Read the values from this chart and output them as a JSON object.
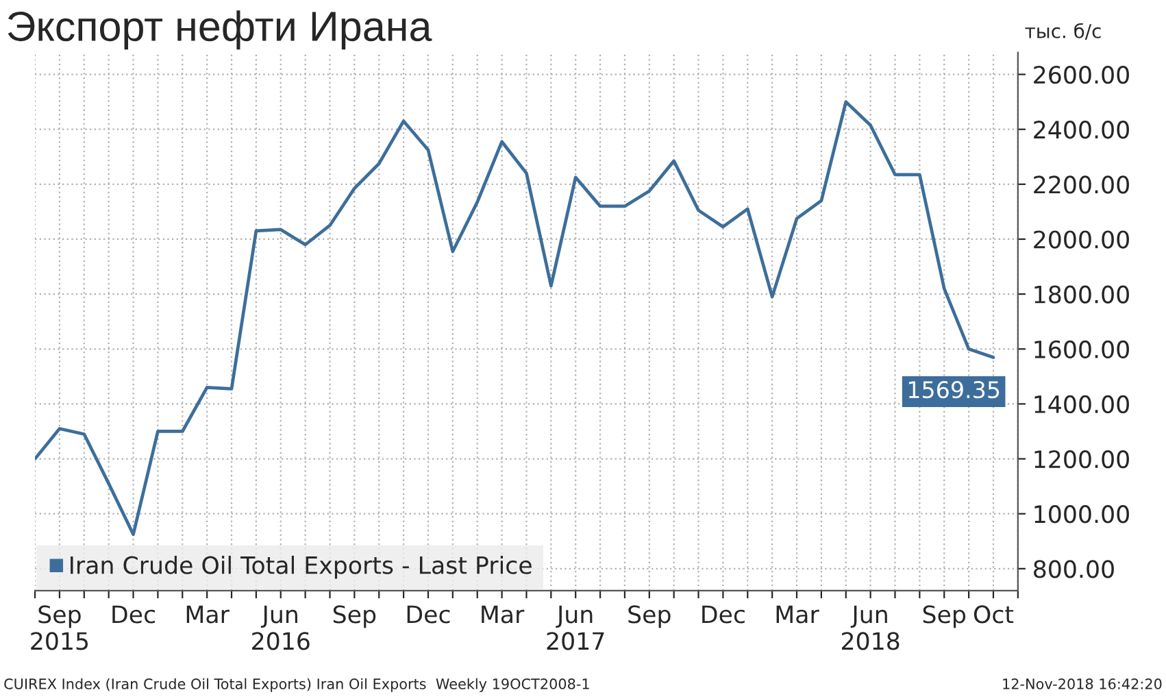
{
  "chart_data": {
    "type": "line",
    "title": "Экспорт нефти Ирана",
    "ylabel": "тыс. б/с",
    "categories": [
      null,
      "Sep\n2015",
      null,
      null,
      "Dec",
      null,
      null,
      "Mar",
      null,
      null,
      "Jun\n2016",
      null,
      null,
      "Sep",
      null,
      null,
      "Dec",
      null,
      null,
      "Mar",
      null,
      null,
      "Jun\n2017",
      null,
      null,
      "Sep",
      null,
      null,
      "Dec",
      null,
      null,
      "Mar",
      null,
      null,
      "Jun\n2018",
      null,
      null,
      "Sep",
      null,
      "Oct"
    ],
    "series": [
      {
        "name": "Iran Crude Oil Total Exports - Last Price",
        "color": "#3d6e9b",
        "values": [
          1200,
          1310,
          1290,
          1110,
          925,
          1300,
          1300,
          1460,
          1455,
          2030,
          2035,
          1980,
          2050,
          2185,
          2275,
          2430,
          2325,
          1955,
          2135,
          2355,
          2240,
          1830,
          2225,
          2120,
          2120,
          2175,
          2285,
          2105,
          2045,
          2110,
          1790,
          2075,
          2140,
          2500,
          2415,
          2235,
          2235,
          1820,
          1600,
          1569.35
        ],
        "value_labels": [
          null,
          null,
          null,
          null,
          null,
          null,
          null,
          null,
          null,
          null,
          null,
          null,
          null,
          null,
          null,
          null,
          null,
          null,
          null,
          null,
          null,
          null,
          null,
          null,
          null,
          null,
          null,
          null,
          null,
          null,
          null,
          null,
          null,
          null,
          null,
          null,
          null,
          null,
          null,
          "1569.35"
        ]
      }
    ],
    "ylim": [
      720,
      2680
    ],
    "yticks": [
      {
        "value": 800,
        "label": "800.00"
      },
      {
        "value": 1000,
        "label": "1000.00"
      },
      {
        "value": 1200,
        "label": "1200.00"
      },
      {
        "value": 1400,
        "label": "1400.00"
      },
      {
        "value": 1600,
        "label": "1600.00"
      },
      {
        "value": 1800,
        "label": "1800.00"
      },
      {
        "value": 2000,
        "label": "2000.00"
      },
      {
        "value": 2200,
        "label": "2200.00"
      },
      {
        "value": 2400,
        "label": "2400.00"
      },
      {
        "value": 2600,
        "label": "2600.00"
      }
    ],
    "grid": true,
    "legend": "bottom left",
    "marker": "none",
    "line_style": "solid",
    "annotations": [
      "CUIREX Index (Iran Crude Oil Total Exports) Iran Oil Exports  Weekly 19OCT2008-1",
      "12-Nov-2018 16:42:20"
    ]
  }
}
